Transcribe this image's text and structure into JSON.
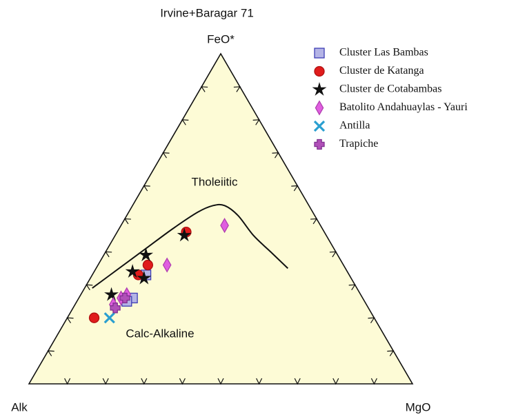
{
  "chart_data": {
    "type": "ternary",
    "title": "Irvine+Baragar 71",
    "apex_labels": {
      "top": "FeO*",
      "left": "Alk",
      "right": "MgO"
    },
    "field_labels": [
      "Tholeiitic",
      "Calc-Alkaline"
    ],
    "ticks": [
      10,
      20,
      30,
      40,
      50,
      60,
      70,
      80,
      90
    ],
    "background": "#fdfbd6",
    "boundary": {
      "alk": [
        69,
        59,
        49,
        39,
        30,
        25,
        22,
        20,
        19,
        17,
        15
      ],
      "feo": [
        29,
        35,
        41,
        47,
        52,
        54,
        54,
        51,
        45,
        40,
        35
      ],
      "mgo": [
        2,
        6,
        10,
        14,
        18,
        21,
        24,
        29,
        36,
        43,
        50
      ]
    },
    "series": [
      {
        "name": "Cluster Las Bambas",
        "marker": "square",
        "color": "#b4b4e6",
        "edge": "#3c3cb4",
        "alk": [
          53,
          60,
          62
        ],
        "feo": [
          33,
          26,
          25
        ],
        "mgo": [
          14,
          14,
          13
        ]
      },
      {
        "name": "Cluster de Katanga",
        "marker": "circle",
        "color": "#e01c1c",
        "edge": "#b01010",
        "alk": [
          36,
          51,
          55,
          73
        ],
        "feo": [
          46,
          36,
          33,
          20
        ],
        "mgo": [
          18,
          13,
          12,
          7
        ]
      },
      {
        "name": "Cluster de Cotabambas",
        "marker": "star",
        "color": "#111111",
        "edge": "#111111",
        "alk": [
          37,
          50,
          56,
          54,
          65
        ],
        "feo": [
          45,
          39,
          34,
          32,
          27
        ],
        "mgo": [
          18,
          11,
          10,
          14,
          8
        ]
      },
      {
        "name": "Batolito Andahuaylas - Yauri",
        "marker": "diamond",
        "color": "#e05ee0",
        "edge": "#b040b0",
        "alk": [
          25,
          46,
          61,
          63,
          66
        ],
        "feo": [
          48,
          36,
          27,
          26,
          24
        ],
        "mgo": [
          27,
          18,
          12,
          11,
          10
        ]
      },
      {
        "name": "Antilla",
        "marker": "x",
        "color": "#2a9fd0",
        "edge": "#2a9fd0",
        "alk": [
          69
        ],
        "feo": [
          20
        ],
        "mgo": [
          11
        ]
      },
      {
        "name": "Trapiche",
        "marker": "plus",
        "color": "#b050b8",
        "edge": "#803090",
        "alk": [
          66,
          62
        ],
        "feo": [
          23,
          26
        ],
        "mgo": [
          11,
          12
        ]
      }
    ]
  }
}
